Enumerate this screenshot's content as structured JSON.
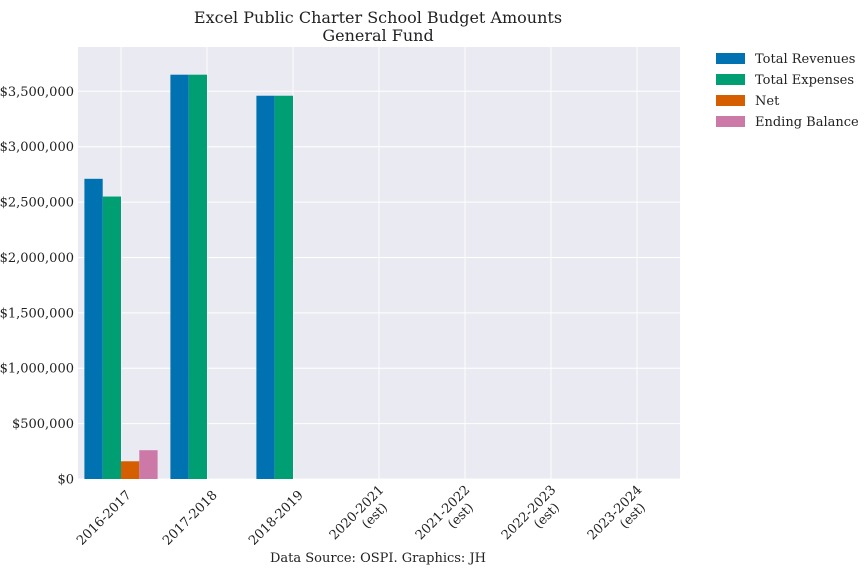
{
  "chart_data": {
    "type": "bar",
    "title": "Excel Public Charter School Budget Amounts",
    "subtitle": "General Fund",
    "caption": "Data Source: OSPI. Graphics: JH",
    "xlabel": "",
    "ylabel": "",
    "ylim": [
      0,
      3900000
    ],
    "yticks": [
      0,
      500000,
      1000000,
      1500000,
      2000000,
      2500000,
      3000000,
      3500000
    ],
    "ytick_labels": [
      "$0",
      "$500,000",
      "$1,000,000",
      "$1,500,000",
      "$2,000,000",
      "$2,500,000",
      "$3,000,000",
      "$3,500,000"
    ],
    "categories": [
      [
        "2016-2017"
      ],
      [
        "2017-2018"
      ],
      [
        "2018-2019"
      ],
      [
        "2020-2021",
        "(est)"
      ],
      [
        "2021-2022",
        "(est)"
      ],
      [
        "2022-2023",
        "(est)"
      ],
      [
        "2023-2024",
        "(est)"
      ]
    ],
    "series": [
      {
        "name": "Total Revenues",
        "color": "#0072b2",
        "values": [
          2710000,
          3650000,
          3460000,
          null,
          null,
          null,
          null
        ]
      },
      {
        "name": "Total Expenses",
        "color": "#009e73",
        "values": [
          2550000,
          3650000,
          3460000,
          null,
          null,
          null,
          null
        ]
      },
      {
        "name": "Net",
        "color": "#d55e00",
        "values": [
          160000,
          null,
          null,
          null,
          null,
          null,
          null
        ]
      },
      {
        "name": "Ending Balance",
        "color": "#cc79a7",
        "values": [
          260000,
          null,
          null,
          null,
          null,
          null,
          null
        ]
      }
    ],
    "grid": true,
    "legend_position": "outside-top-right"
  }
}
